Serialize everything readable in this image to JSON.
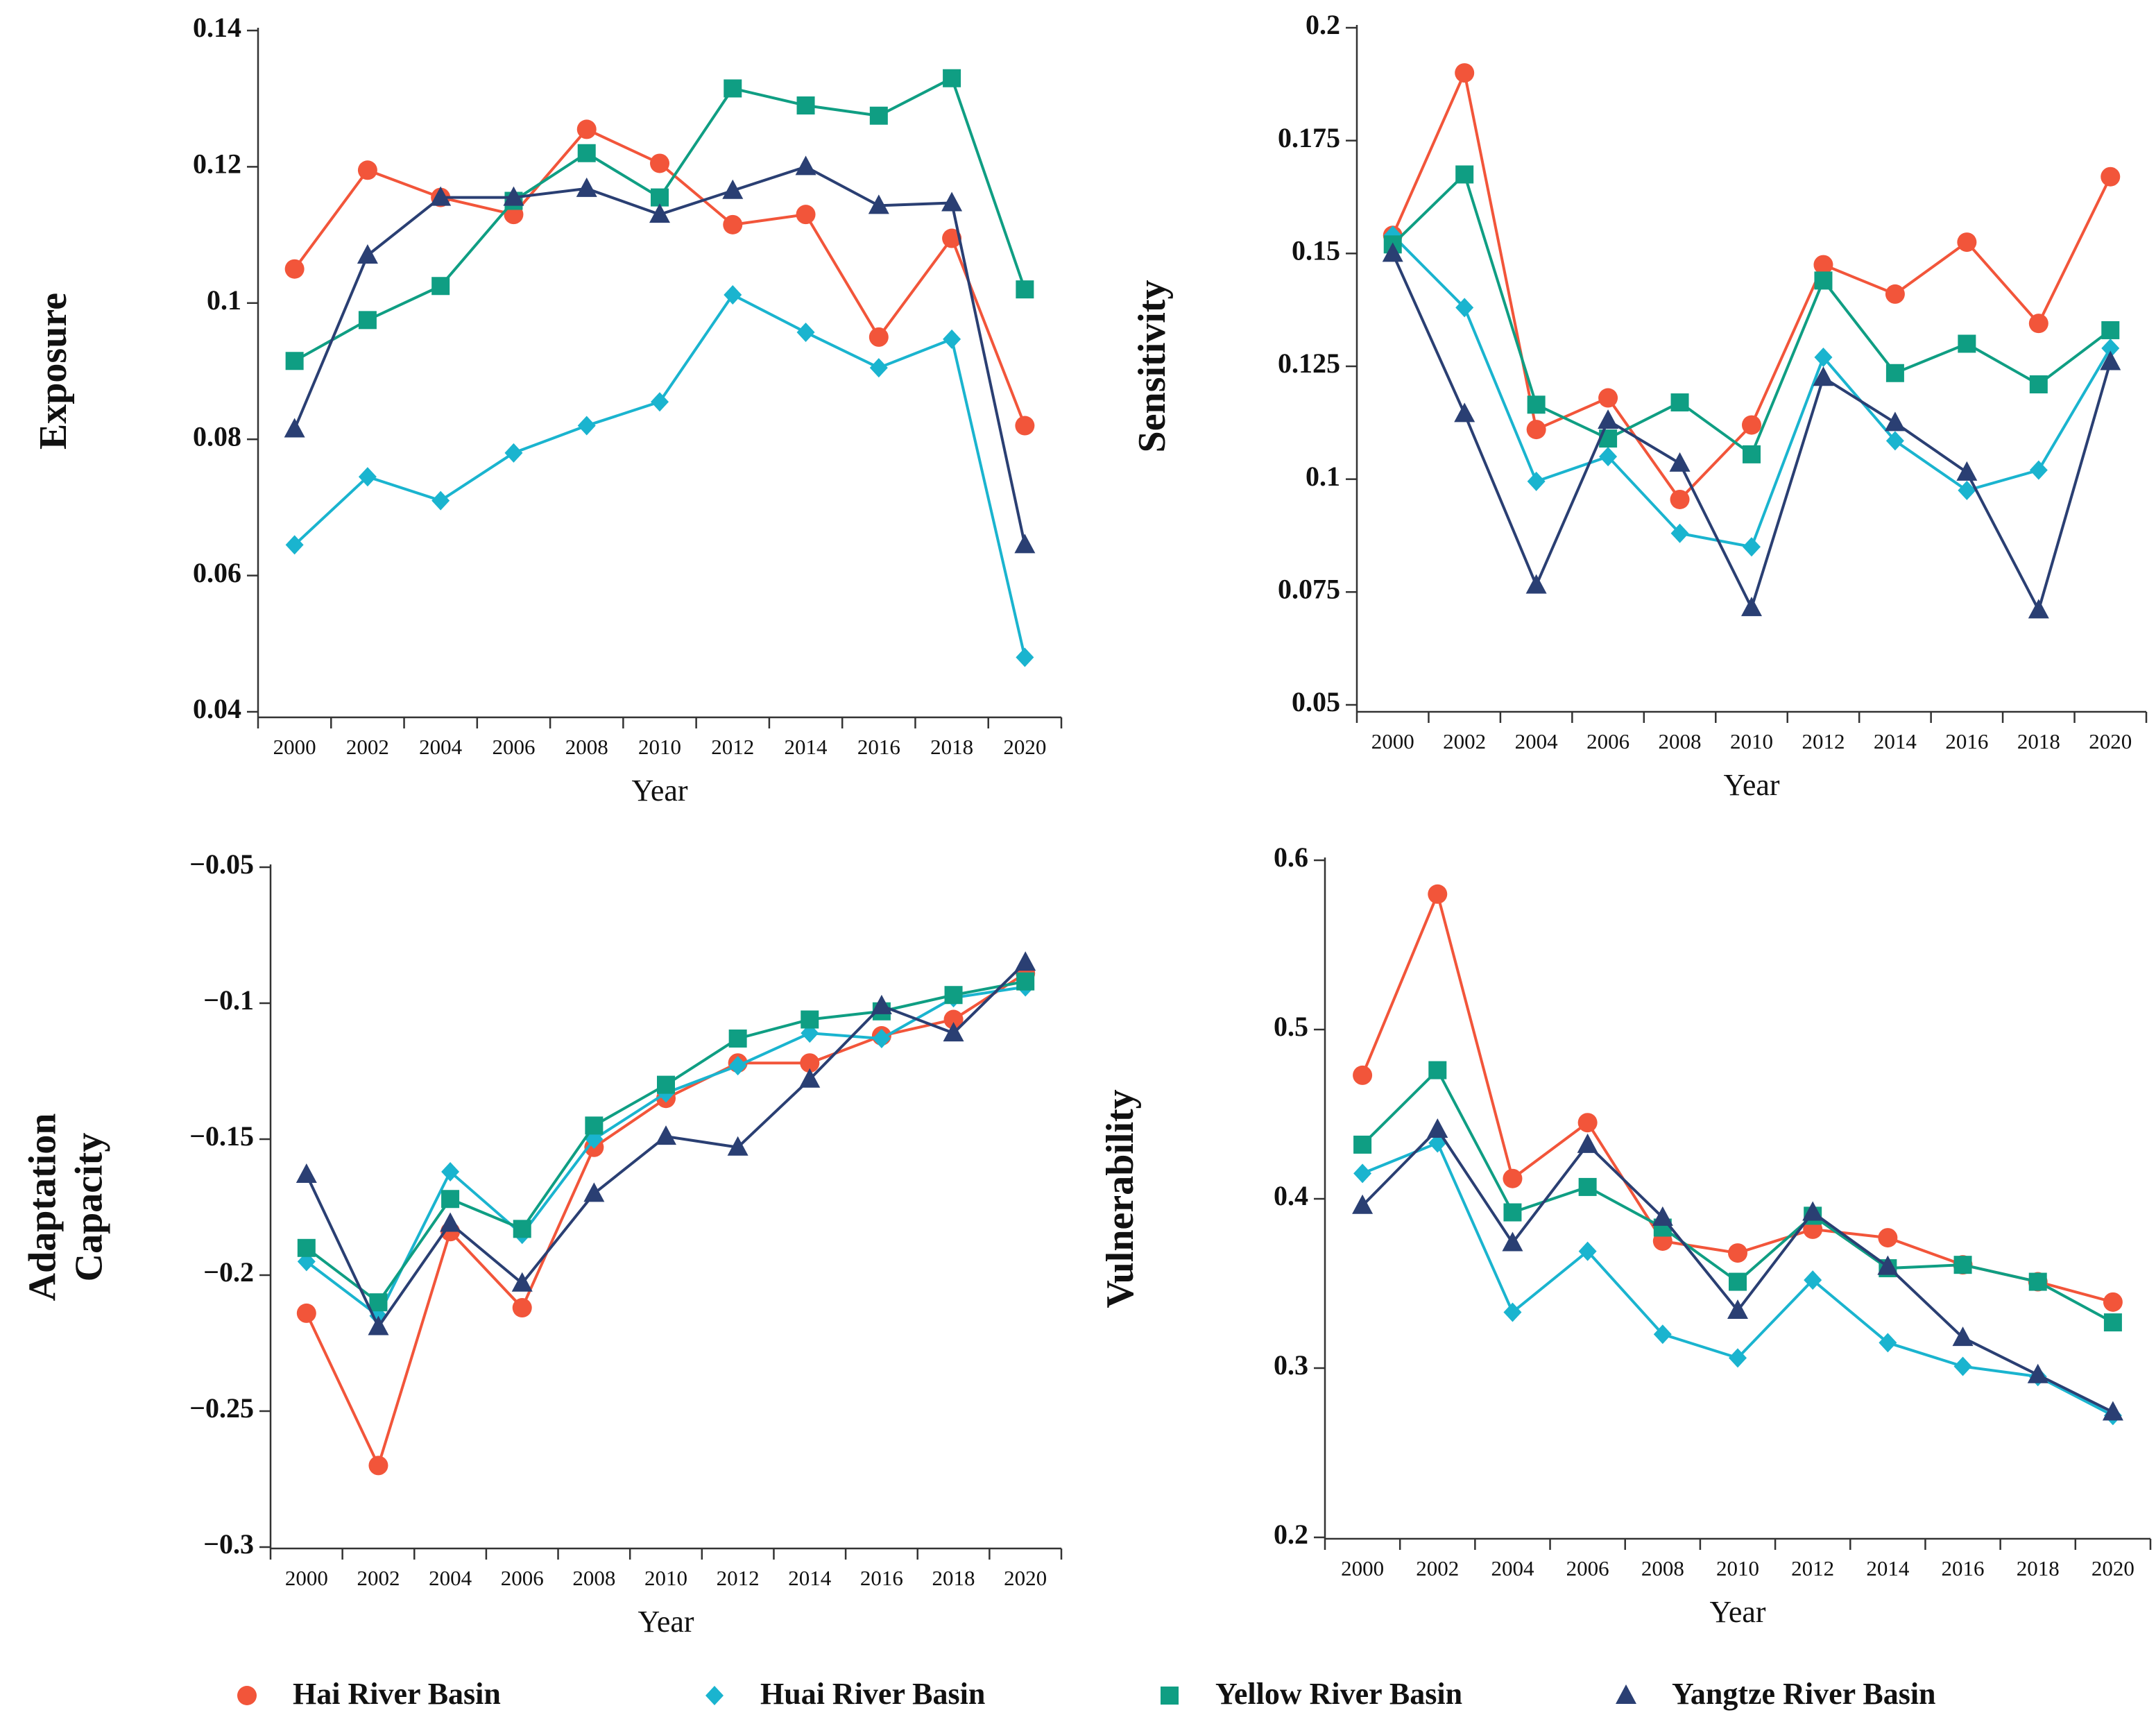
{
  "chart_data": [
    {
      "type": "line",
      "x_label": "Year",
      "y_label": "Exposure",
      "categories": [
        "2000",
        "2002",
        "2004",
        "2006",
        "2008",
        "2010",
        "2012",
        "2014",
        "2016",
        "2018",
        "2020"
      ],
      "ylim": [
        0.04,
        0.14
      ],
      "yticks": [
        0.04,
        0.06,
        0.08,
        0.1,
        0.12,
        0.14
      ],
      "series": [
        {
          "name": "Hai River Basin",
          "color": "#f2553a",
          "marker": "circle",
          "values": [
            0.105,
            0.1195,
            0.1155,
            0.113,
            0.1255,
            0.1205,
            0.1115,
            0.113,
            0.095,
            0.1095,
            0.082
          ]
        },
        {
          "name": "Huai River Basin",
          "color": "#1ab4cf",
          "marker": "diamond",
          "values": [
            0.0645,
            0.0745,
            0.071,
            0.078,
            0.082,
            0.0855,
            0.1012,
            0.0957,
            0.0905,
            0.0947,
            0.048
          ]
        },
        {
          "name": "Yellow River Basin",
          "color": "#0f9e83",
          "marker": "square",
          "values": [
            0.0915,
            0.0975,
            0.1025,
            0.115,
            0.122,
            0.1155,
            0.1315,
            0.129,
            0.1275,
            0.133,
            0.102
          ]
        },
        {
          "name": "Yangtze River Basin",
          "color": "#2a3f73",
          "marker": "triangle",
          "values": [
            0.0815,
            0.107,
            0.1155,
            0.1155,
            0.1168,
            0.113,
            0.1165,
            0.12,
            0.1143,
            0.1147,
            0.0645
          ]
        }
      ]
    },
    {
      "type": "line",
      "x_label": "Year",
      "y_label": "Sensitivity",
      "categories": [
        "2000",
        "2002",
        "2004",
        "2006",
        "2008",
        "2010",
        "2012",
        "2014",
        "2016",
        "2018",
        "2020"
      ],
      "ylim": [
        0.05,
        0.2
      ],
      "yticks": [
        0.05,
        0.075,
        0.1,
        0.125,
        0.15,
        0.175,
        0.2
      ],
      "series": [
        {
          "name": "Hai River Basin",
          "color": "#f2553a",
          "marker": "circle",
          "values": [
            0.154,
            0.19,
            0.111,
            0.118,
            0.0955,
            0.112,
            0.1475,
            0.141,
            0.1525,
            0.1345,
            0.167
          ]
        },
        {
          "name": "Huai River Basin",
          "color": "#1ab4cf",
          "marker": "diamond",
          "values": [
            0.154,
            0.138,
            0.0995,
            0.105,
            0.088,
            0.085,
            0.127,
            0.1085,
            0.0975,
            0.102,
            0.129
          ]
        },
        {
          "name": "Yellow River Basin",
          "color": "#0f9e83",
          "marker": "square",
          "values": [
            0.152,
            0.1675,
            0.1165,
            0.109,
            0.117,
            0.1055,
            0.144,
            0.1235,
            0.13,
            0.121,
            0.133
          ]
        },
        {
          "name": "Yangtze River Basin",
          "color": "#2a3f73",
          "marker": "triangle",
          "values": [
            0.15,
            0.1145,
            0.0765,
            0.113,
            0.1035,
            0.0715,
            0.1225,
            0.1125,
            0.1015,
            0.071,
            0.126
          ]
        }
      ]
    },
    {
      "type": "line",
      "x_label": "Year",
      "y_label": "Adaptation Capacity",
      "categories": [
        "2000",
        "2002",
        "2004",
        "2006",
        "2008",
        "2010",
        "2012",
        "2014",
        "2016",
        "2018",
        "2020"
      ],
      "ylim": [
        -0.3,
        -0.05
      ],
      "yticks": [
        {
          "value": -0.3,
          "label": "−0.3"
        },
        {
          "value": -0.25,
          "label": "−0.25"
        },
        {
          "value": -0.2,
          "label": "−0.2"
        },
        {
          "value": -0.15,
          "label": "−0.15"
        },
        {
          "value": -0.1,
          "label": "−0.1"
        },
        {
          "value": -0.05,
          "label": "−0.05"
        }
      ],
      "series": [
        {
          "name": "Hai River Basin",
          "color": "#f2553a",
          "marker": "circle",
          "values": [
            -0.214,
            -0.27,
            -0.184,
            -0.212,
            -0.153,
            -0.135,
            -0.122,
            -0.122,
            -0.112,
            -0.106,
            -0.089
          ]
        },
        {
          "name": "Huai River Basin",
          "color": "#1ab4cf",
          "marker": "diamond",
          "values": [
            -0.195,
            -0.215,
            -0.162,
            -0.185,
            -0.15,
            -0.133,
            -0.123,
            -0.111,
            -0.113,
            -0.098,
            -0.094
          ]
        },
        {
          "name": "Yellow River Basin",
          "color": "#0f9e83",
          "marker": "square",
          "values": [
            -0.19,
            -0.21,
            -0.172,
            -0.183,
            -0.145,
            -0.13,
            -0.113,
            -0.106,
            -0.103,
            -0.097,
            -0.092
          ]
        },
        {
          "name": "Yangtze River Basin",
          "color": "#2a3f73",
          "marker": "triangle",
          "values": [
            -0.163,
            -0.219,
            -0.181,
            -0.203,
            -0.17,
            -0.149,
            -0.153,
            -0.128,
            -0.101,
            -0.111,
            -0.085
          ]
        }
      ]
    },
    {
      "type": "line",
      "x_label": "Year",
      "y_label": "Vulnerability",
      "categories": [
        "2000",
        "2002",
        "2004",
        "2006",
        "2008",
        "2010",
        "2012",
        "2014",
        "2016",
        "2018",
        "2020"
      ],
      "ylim": [
        0.2,
        0.6
      ],
      "yticks": [
        0.2,
        0.3,
        0.4,
        0.5,
        0.6
      ],
      "series": [
        {
          "name": "Hai River Basin",
          "color": "#f2553a",
          "marker": "circle",
          "values": [
            0.473,
            0.58,
            0.412,
            0.445,
            0.375,
            0.368,
            0.382,
            0.377,
            0.361,
            0.351,
            0.339
          ]
        },
        {
          "name": "Huai River Basin",
          "color": "#1ab4cf",
          "marker": "diamond",
          "values": [
            0.415,
            0.433,
            0.333,
            0.369,
            0.32,
            0.306,
            0.352,
            0.315,
            0.301,
            0.295,
            0.272
          ]
        },
        {
          "name": "Yellow River Basin",
          "color": "#0f9e83",
          "marker": "square",
          "values": [
            0.432,
            0.476,
            0.392,
            0.407,
            0.383,
            0.351,
            0.39,
            0.359,
            0.361,
            0.351,
            0.327
          ]
        },
        {
          "name": "Yangtze River Basin",
          "color": "#2a3f73",
          "marker": "triangle",
          "values": [
            0.396,
            0.441,
            0.374,
            0.432,
            0.389,
            0.334,
            0.392,
            0.36,
            0.318,
            0.296,
            0.274
          ]
        }
      ]
    }
  ]
}
